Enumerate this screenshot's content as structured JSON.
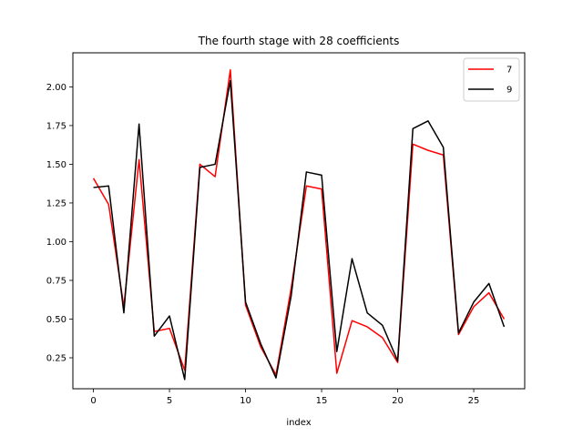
{
  "chart_data": {
    "type": "line",
    "title": "The fourth stage with 28 coefficients",
    "xlabel": "index",
    "ylabel": "",
    "xlim": [
      -1.35,
      28.35
    ],
    "ylim": [
      0.05,
      2.22
    ],
    "xticks": [
      0,
      5,
      10,
      15,
      20,
      25
    ],
    "yticks": [
      0.25,
      0.5,
      0.75,
      1.0,
      1.25,
      1.5,
      1.75,
      2.0
    ],
    "ytick_labels": [
      "0.25",
      "0.50",
      "0.75",
      "1.00",
      "1.25",
      "1.50",
      "1.75",
      "2.00"
    ],
    "grid": false,
    "legend_position": "top-right",
    "x": [
      0,
      1,
      2,
      3,
      4,
      5,
      6,
      7,
      8,
      9,
      10,
      11,
      12,
      13,
      14,
      15,
      16,
      17,
      18,
      19,
      20,
      21,
      22,
      23,
      24,
      25,
      26,
      27
    ],
    "series": [
      {
        "name": "7",
        "color": "#ff0000",
        "values": [
          1.41,
          1.24,
          0.58,
          1.53,
          0.42,
          0.44,
          0.17,
          1.5,
          1.42,
          2.11,
          0.59,
          0.32,
          0.14,
          0.7,
          1.36,
          1.34,
          0.15,
          0.49,
          0.45,
          0.38,
          0.22,
          1.63,
          1.59,
          1.56,
          0.4,
          0.58,
          0.67,
          0.5
        ]
      },
      {
        "name": "9",
        "color": "#000000",
        "values": [
          1.35,
          1.36,
          0.54,
          1.76,
          0.39,
          0.52,
          0.11,
          1.48,
          1.5,
          2.04,
          0.61,
          0.34,
          0.12,
          0.65,
          1.45,
          1.43,
          0.29,
          0.89,
          0.54,
          0.46,
          0.23,
          1.73,
          1.78,
          1.61,
          0.41,
          0.61,
          0.73,
          0.45
        ]
      }
    ]
  }
}
